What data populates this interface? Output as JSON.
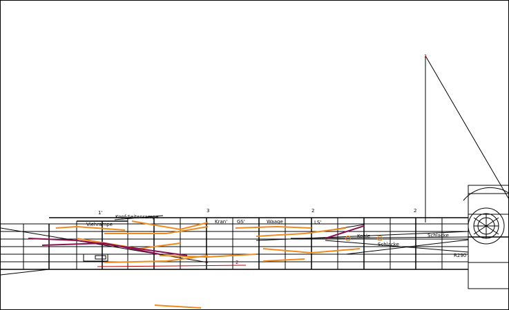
{
  "labels": {
    "marker_1_left": "1'",
    "kopf_seitenrampe": "Kopf-Seitenrampe",
    "viehrampe": "Viehrampe",
    "marker_3": "3",
    "kran": "Kran'",
    "gs": "GS'",
    "waage": "Waage",
    "marker_2_mid": "2",
    "ls": "LS'",
    "marker_2_right": "2",
    "kohle": "Kohle",
    "schlacke_1": "Schlacke",
    "schlacke_2": "Schlacke",
    "r290": "R290",
    "marker_2_low": "2",
    "marker_1_top": "1"
  },
  "colors": {
    "track": "#000000",
    "switch_orange": "#f08a1c",
    "switch_purple": "#8b1050",
    "red": "#c00000"
  }
}
